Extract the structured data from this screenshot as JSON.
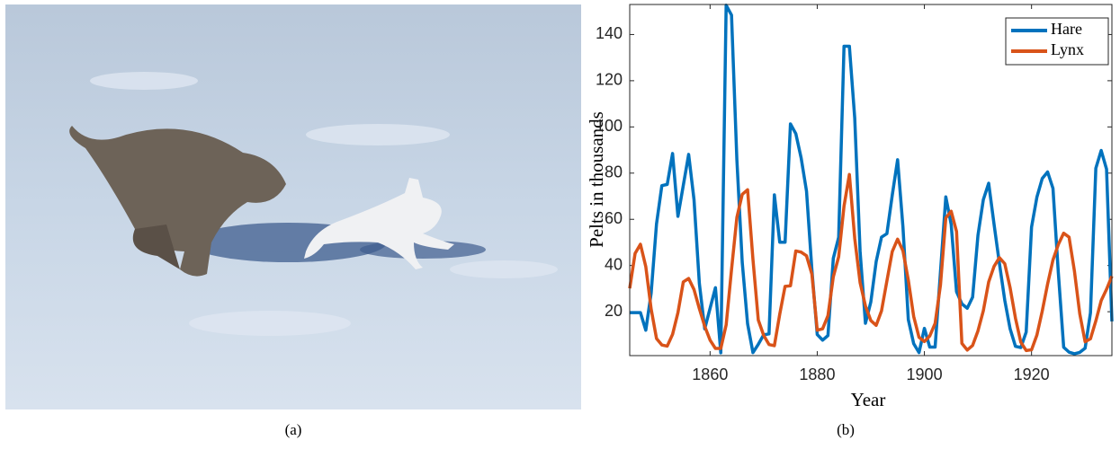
{
  "captions": [
    "(a)",
    "(b)"
  ],
  "chart_data": {
    "type": "line",
    "xlabel": "Year",
    "ylabel": "Pelts in thousands",
    "x": [
      1845,
      1846,
      1847,
      1848,
      1849,
      1850,
      1851,
      1852,
      1853,
      1854,
      1855,
      1856,
      1857,
      1858,
      1859,
      1860,
      1861,
      1862,
      1863,
      1864,
      1865,
      1866,
      1867,
      1868,
      1869,
      1870,
      1871,
      1872,
      1873,
      1874,
      1875,
      1876,
      1877,
      1878,
      1879,
      1880,
      1881,
      1882,
      1883,
      1884,
      1885,
      1886,
      1887,
      1888,
      1889,
      1890,
      1891,
      1892,
      1893,
      1894,
      1895,
      1896,
      1897,
      1898,
      1899,
      1900,
      1901,
      1902,
      1903,
      1904,
      1905,
      1906,
      1907,
      1908,
      1909,
      1910,
      1911,
      1912,
      1913,
      1914,
      1915,
      1916,
      1917,
      1918,
      1919,
      1920,
      1921,
      1922,
      1923,
      1924,
      1925,
      1926,
      1927,
      1928,
      1929,
      1930,
      1931,
      1932,
      1933,
      1934,
      1935
    ],
    "series": [
      {
        "name": "Hare",
        "color": "#0072bd",
        "values": [
          19.6,
          19.6,
          19.6,
          12,
          28,
          58,
          74.6,
          75.1,
          88.5,
          61.3,
          74.7,
          88.1,
          68.5,
          32.2,
          12.6,
          21.5,
          30.4,
          2.2,
          152.7,
          148.4,
          85.8,
          41.4,
          14.8,
          2.3,
          5.9,
          10,
          10.4,
          70.6,
          50.1,
          50.1,
          101.3,
          97.1,
          86.5,
          72.2,
          38.3,
          10.1,
          7.7,
          9.7,
          43.1,
          52.2,
          134.9,
          134.9,
          103.8,
          46.1,
          15,
          24.2,
          41.7,
          52.3,
          53.8,
          70.4,
          85.8,
          56.7,
          16.6,
          6.2,
          2.3,
          12.8,
          4.7,
          4.7,
          37.2,
          69.7,
          57.8,
          28.7,
          23.4,
          21.5,
          26.3,
          53.1,
          68.5,
          75.6,
          57.9,
          41,
          25,
          12.6,
          5,
          4.5,
          11.2,
          56.6,
          69.6,
          77.7,
          80.5,
          73.4,
          36.9,
          4.6,
          2.5,
          1.8,
          2.4,
          4.2,
          19.5,
          82.1,
          89.8,
          81.7,
          15.8
        ]
      },
      {
        "name": "Lynx",
        "color": "#d95319",
        "values": [
          30.1,
          45.2,
          49.2,
          39.5,
          21.2,
          8.4,
          5.6,
          5.1,
          10.2,
          19.6,
          32.9,
          34.4,
          29.6,
          21.3,
          13.7,
          7.7,
          4.1,
          4.1,
          14.3,
          38.2,
          60.8,
          70.8,
          72.8,
          42.7,
          16.4,
          9.8,
          5.8,
          5.3,
          18.9,
          31,
          31.2,
          46.3,
          45.8,
          44.2,
          36.3,
          12,
          12.6,
          18.3,
          35.1,
          43.8,
          65.7,
          79.4,
          51.7,
          32.6,
          22.5,
          16.2,
          14.1,
          20.4,
          33.3,
          46,
          51.4,
          46.4,
          33.7,
          18,
          8.9,
          7.1,
          9.5,
          14.9,
          31.5,
          60.6,
          63.5,
          54.7,
          6.3,
          3.4,
          5.4,
          11.7,
          20.4,
          32.9,
          39.6,
          43.4,
          40.8,
          30.4,
          17.2,
          6.8,
          3.2,
          3.5,
          9.9,
          20.3,
          32,
          42.4,
          49.1,
          54,
          52.3,
          37.7,
          19.1,
          7,
          8.3,
          16,
          24.8,
          29.7,
          35.4
        ]
      }
    ],
    "xlim": [
      1845,
      1935
    ],
    "ylim": [
      1,
      153
    ],
    "xticks": [
      1860,
      1880,
      1900,
      1920
    ],
    "yticks": [
      20,
      40,
      60,
      80,
      100,
      120,
      140
    ],
    "legend": "upper-right"
  }
}
